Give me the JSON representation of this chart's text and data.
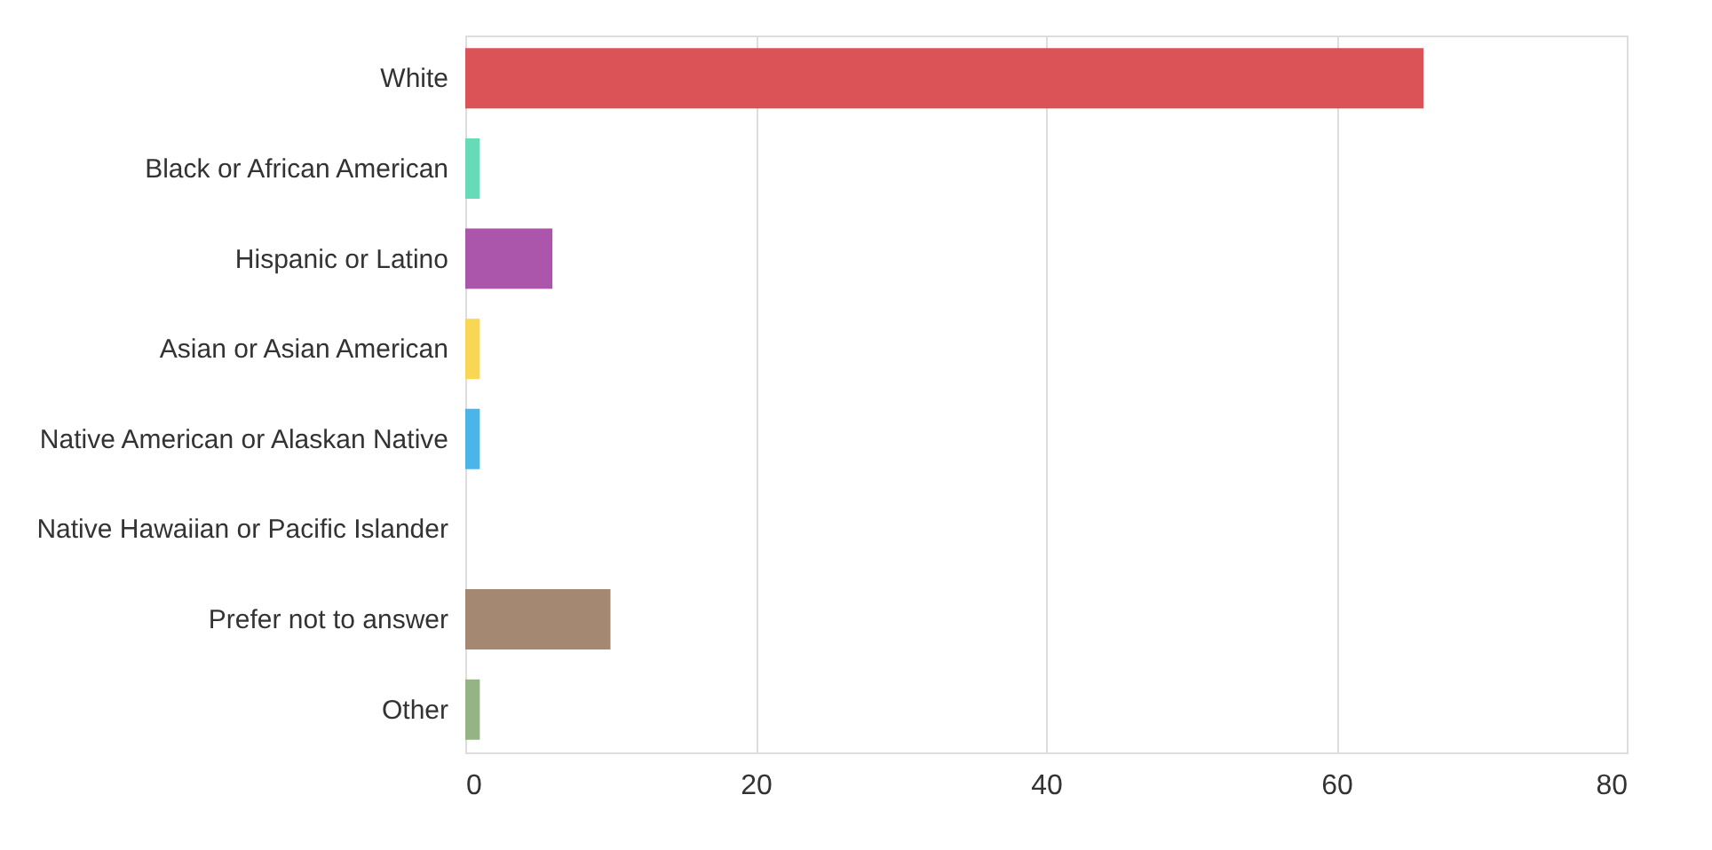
{
  "chart_data": {
    "type": "bar",
    "orientation": "horizontal",
    "categories": [
      "White",
      "Black or African American",
      "Hispanic or Latino",
      "Asian or Asian American",
      "Native American or Alaskan Native",
      "Native Hawaiian or Pacific Islander",
      "Prefer not to answer",
      "Other"
    ],
    "values": [
      66,
      1,
      6,
      1,
      1,
      0,
      10,
      1
    ],
    "colors": [
      "#d9494e",
      "#5fd8b4",
      "#a64ca6",
      "#f9d44a",
      "#3fb1e8",
      "#7f7f7f",
      "#a0826a",
      "#8fb07f"
    ],
    "xlim": [
      0,
      80
    ],
    "xticks": [
      0,
      20,
      40,
      60,
      80
    ],
    "grid": "x"
  }
}
